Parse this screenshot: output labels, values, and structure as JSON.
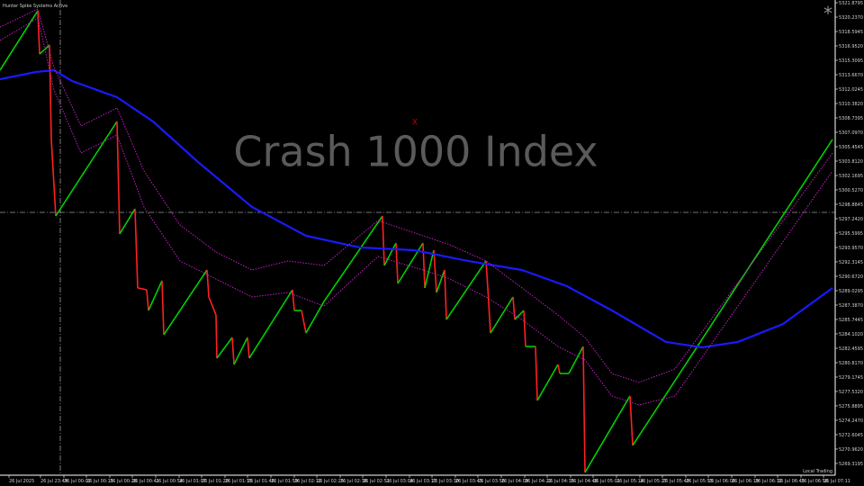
{
  "chart_data": {
    "type": "line",
    "title": "Hunter Spike Systems Active",
    "watermark": "Crash 1000 Index",
    "annotations": [
      "X",
      "*",
      "Local Trading"
    ],
    "background": "#000000",
    "xlim": [
      0,
      928
    ],
    "ylim": [
      5267.98,
      5322.19
    ],
    "xticks": [
      {
        "value": 10,
        "label": "26 Jul 2025"
      },
      {
        "value": 45,
        "label": "26 Jul 23:49"
      },
      {
        "value": 71,
        "label": "26 Jul 00:02"
      },
      {
        "value": 96,
        "label": "26 Jul 00:15"
      },
      {
        "value": 122,
        "label": "26 Jul 00:28"
      },
      {
        "value": 147,
        "label": "26 Jul 00:41"
      },
      {
        "value": 173,
        "label": "26 Jul 00:54"
      },
      {
        "value": 199,
        "label": "26 Jul 01:07"
      },
      {
        "value": 224,
        "label": "26 Jul 01:20"
      },
      {
        "value": 250,
        "label": "26 Jul 01:33"
      },
      {
        "value": 275,
        "label": "26 Jul 01:46"
      },
      {
        "value": 301,
        "label": "26 Jul 01:59"
      },
      {
        "value": 327,
        "label": "26 Jul 02:12"
      },
      {
        "value": 352,
        "label": "26 Jul 02:25"
      },
      {
        "value": 378,
        "label": "26 Jul 02:38"
      },
      {
        "value": 403,
        "label": "26 Jul 02:51"
      },
      {
        "value": 429,
        "label": "26 Jul 03:04"
      },
      {
        "value": 455,
        "label": "26 Jul 03:17"
      },
      {
        "value": 480,
        "label": "26 Jul 03:30"
      },
      {
        "value": 506,
        "label": "26 Jul 03:43"
      },
      {
        "value": 531,
        "label": "26 Jul 03:56"
      },
      {
        "value": 557,
        "label": "26 Jul 04:09"
      },
      {
        "value": 583,
        "label": "26 Jul 04:22"
      },
      {
        "value": 608,
        "label": "26 Jul 04:35"
      },
      {
        "value": 634,
        "label": "26 Jul 04:48"
      },
      {
        "value": 659,
        "label": "26 Jul 05:01"
      },
      {
        "value": 685,
        "label": "26 Jul 05:14"
      },
      {
        "value": 711,
        "label": "26 Jul 05:27"
      },
      {
        "value": 736,
        "label": "26 Jul 05:40"
      },
      {
        "value": 762,
        "label": "26 Jul 05:53"
      },
      {
        "value": 787,
        "label": "26 Jul 06:06"
      },
      {
        "value": 813,
        "label": "26 Jul 06:19"
      },
      {
        "value": 839,
        "label": "26 Jul 06:32"
      },
      {
        "value": 864,
        "label": "26 Jul 06:45"
      },
      {
        "value": 890,
        "label": "26 Jul 06:58"
      },
      {
        "value": 915,
        "label": "26 Jul 07:11"
      }
    ],
    "yticks": [
      5321.8795,
      {
        "value": 5320.237,
        "label": "5320.2370"
      },
      5318.5945,
      {
        "value": 5316.952,
        "label": "5316.9520"
      },
      5315.3095,
      {
        "value": 5313.667,
        "label": "5313.6670"
      },
      5312.0245,
      {
        "value": 5310.382,
        "label": "5310.3820"
      },
      5308.7395,
      {
        "value": 5307.097,
        "label": "5307.0970"
      },
      5305.4545,
      {
        "value": 5303.812,
        "label": "5303.8120"
      },
      5302.1695,
      {
        "value": 5300.527,
        "label": "5300.5270"
      },
      5298.8845,
      {
        "value": 5297.242,
        "label": "5297.2420"
      },
      5295.5995,
      {
        "value": 5293.957,
        "label": "5293.9570"
      },
      5292.3145,
      {
        "value": 5290.672,
        "label": "5290.6720"
      },
      5289.0295,
      {
        "value": 5287.387,
        "label": "5287.3870"
      },
      5285.7445,
      {
        "value": 5284.102,
        "label": "5284.1020"
      },
      5282.4595,
      {
        "value": 5280.817,
        "label": "5280.8170"
      },
      5279.1745,
      {
        "value": 5277.532,
        "label": "5277.5320"
      },
      5275.8895,
      {
        "value": 5274.247,
        "label": "5274.2470"
      },
      5272.6045,
      {
        "value": 5270.962,
        "label": "5270.9620"
      },
      5269.3195
    ],
    "series": [
      {
        "color": "#00d000",
        "down_color": "#ff2020",
        "style": "updown",
        "x": [
          0,
          42,
          44,
          55,
          57,
          62,
          130,
          133,
          150,
          153,
          163,
          165,
          180,
          182,
          230,
          232,
          240,
          241,
          258,
          260,
          275,
          277,
          325,
          327,
          335,
          340,
          360,
          425,
          427,
          440,
          442,
          470,
          472,
          482,
          485,
          494,
          496,
          540,
          542,
          545,
          570,
          572,
          582,
          584,
          595,
          597,
          620,
          622,
          632,
          648,
          650,
          700,
          703,
          925
        ],
        "values": [
          5314.18,
          5320.96,
          5316.03,
          5317.05,
          5306.28,
          5297.55,
          5308.33,
          5295.5,
          5298.37,
          5289.34,
          5289.13,
          5286.77,
          5290.16,
          5284.0,
          5291.39,
          5288.31,
          5286.26,
          5281.33,
          5283.69,
          5280.61,
          5283.69,
          5281.33,
          5289.13,
          5286.77,
          5286.77,
          5284.2,
          5287.8,
          5297.55,
          5291.9,
          5294.47,
          5289.85,
          5294.47,
          5289.34,
          5293.65,
          5288.82,
          5291.39,
          5285.74,
          5292.42,
          5289.34,
          5284.2,
          5288.31,
          5285.74,
          5286.77,
          5282.66,
          5282.66,
          5276.5,
          5280.61,
          5279.58,
          5279.58,
          5282.66,
          5268.29,
          5277.02,
          5271.37,
          5306.28
        ]
      },
      {
        "color": "#1a1aff",
        "style": "solid",
        "x": [
          0,
          40,
          60,
          80,
          130,
          170,
          220,
          280,
          340,
          400,
          460,
          520,
          580,
          630,
          680,
          740,
          780,
          820,
          870,
          925
        ],
        "values": [
          5313.15,
          5313.98,
          5314.18,
          5312.95,
          5311.1,
          5308.33,
          5303.71,
          5298.58,
          5295.29,
          5293.96,
          5293.65,
          5292.42,
          5291.39,
          5289.54,
          5286.77,
          5283.18,
          5282.56,
          5283.18,
          5285.23,
          5289.34
        ]
      },
      {
        "color": "#c020c0",
        "style": "dotted",
        "x": [
          0,
          42,
          60,
          90,
          130,
          160,
          200,
          240,
          280,
          320,
          360,
          420,
          470,
          500,
          540,
          580,
          620,
          650,
          680,
          710,
          750,
          925
        ],
        "values": [
          5319.11,
          5321.16,
          5314.49,
          5307.82,
          5309.87,
          5302.68,
          5296.52,
          5293.44,
          5291.39,
          5292.42,
          5291.9,
          5297.04,
          5295.29,
          5294.26,
          5292.42,
          5289.34,
          5286.26,
          5283.69,
          5279.58,
          5278.56,
          5280.1,
          5304.74
        ]
      },
      {
        "color": "#c020c0",
        "style": "dotted",
        "x": [
          0,
          42,
          60,
          90,
          130,
          160,
          200,
          240,
          280,
          320,
          360,
          420,
          470,
          500,
          540,
          580,
          620,
          650,
          680,
          710,
          750,
          925
        ],
        "values": [
          5317.57,
          5320.13,
          5311.92,
          5304.74,
          5306.79,
          5298.58,
          5292.42,
          5290.36,
          5288.31,
          5288.82,
          5287.28,
          5292.93,
          5291.39,
          5290.36,
          5288.31,
          5285.74,
          5282.66,
          5281.12,
          5277.02,
          5275.99,
          5277.02,
          5302.68
        ]
      }
    ]
  }
}
